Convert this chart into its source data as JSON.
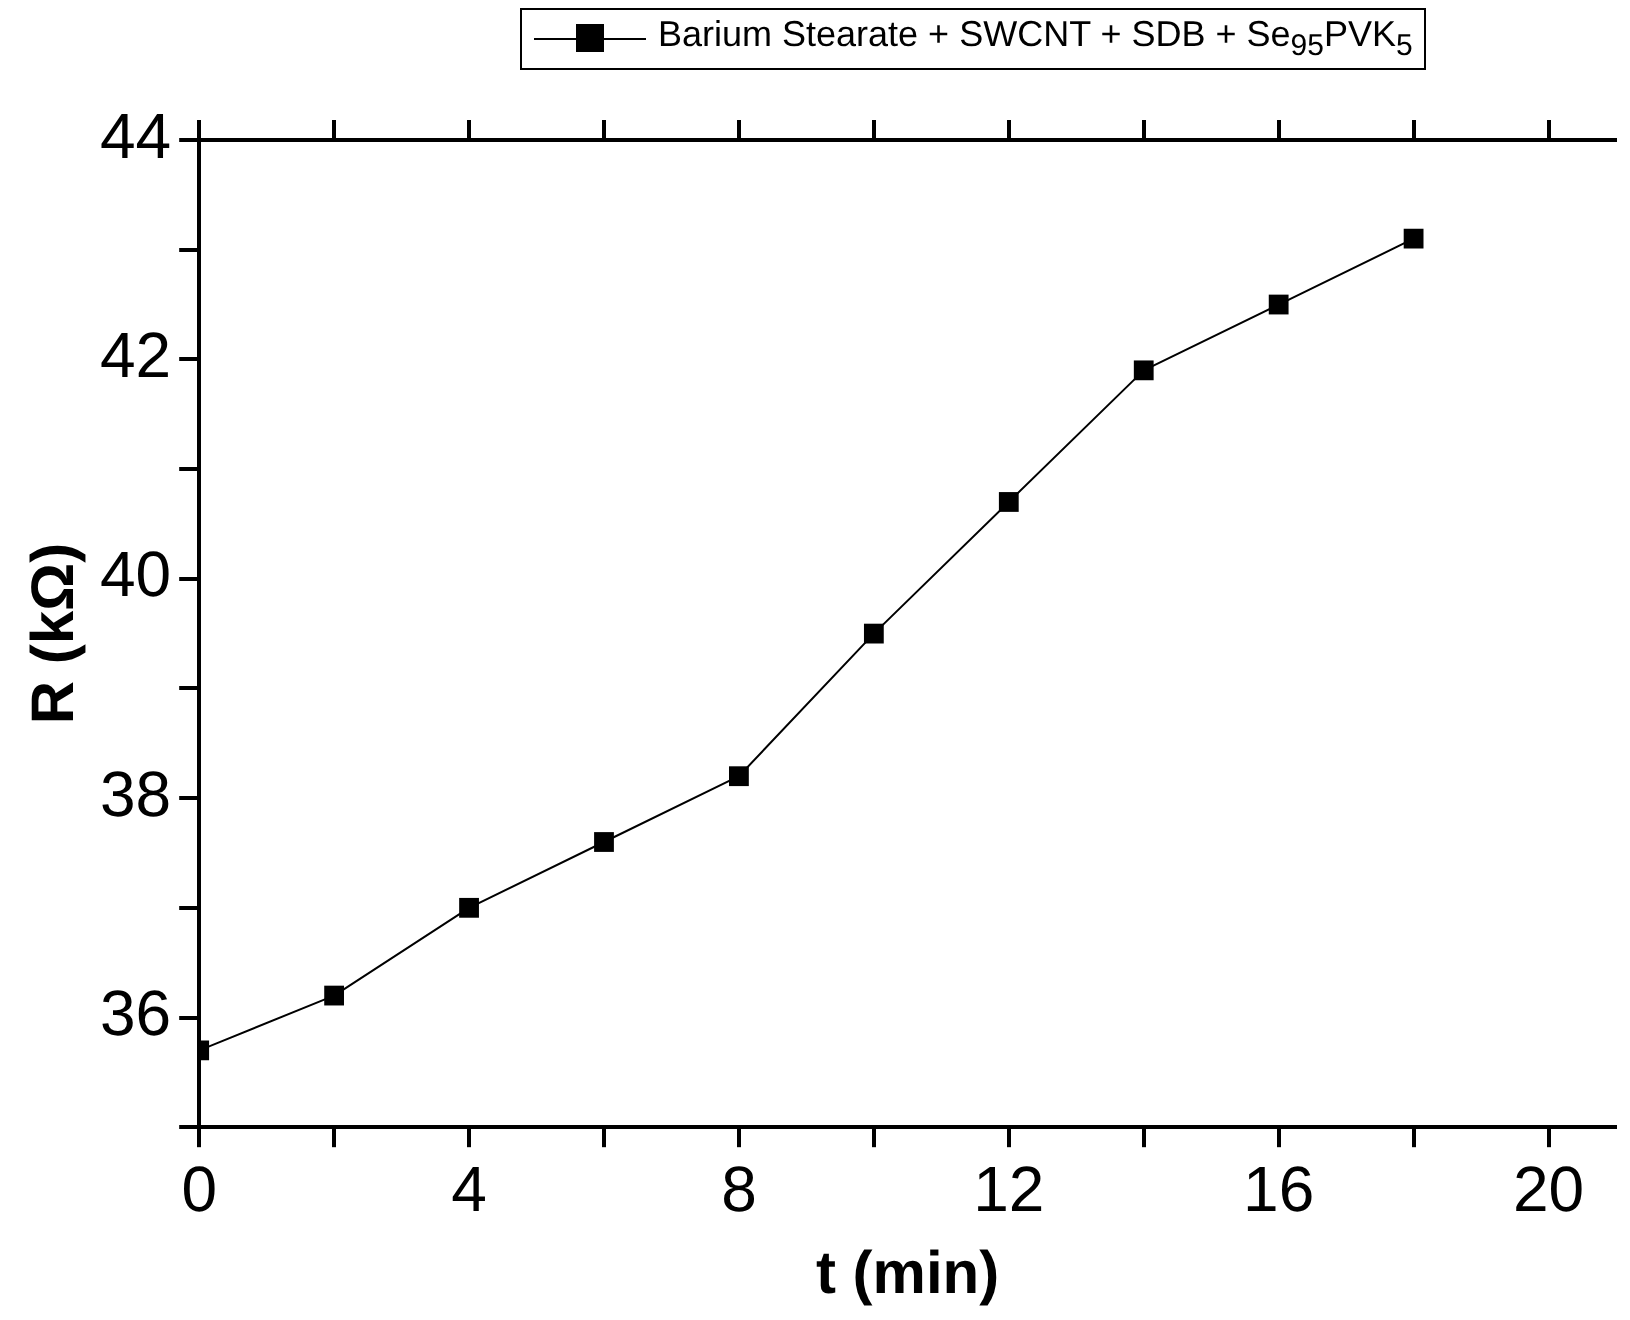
{
  "chart_data": {
    "type": "line",
    "xlabel": "t (min)",
    "ylabel": "R (kΩ)",
    "x": [
      0,
      2,
      4,
      6,
      8,
      10,
      12,
      14,
      16,
      18
    ],
    "series": [
      {
        "name": "Barium Stearate + SWCNT + SDB + Se$_{95}$PVK$_{5}$",
        "color": "#000000",
        "values": [
          35.7,
          36.2,
          37.0,
          37.6,
          38.2,
          39.5,
          40.7,
          41.9,
          42.5,
          43.1
        ]
      }
    ],
    "xlim": [
      0,
      21
    ],
    "xticks": [
      0,
      {
        "value": 2,
        "label": null
      },
      4,
      {
        "value": 6,
        "label": null
      },
      8,
      {
        "value": 10,
        "label": null
      },
      12,
      {
        "value": 14,
        "label": null
      },
      16,
      {
        "value": 18,
        "label": null
      },
      20
    ],
    "ylim": [
      35,
      44
    ],
    "yticks": [
      {
        "value": 35,
        "label": null
      },
      36,
      {
        "value": 37,
        "label": null
      },
      38,
      {
        "value": 39,
        "label": null
      },
      40,
      {
        "value": 41,
        "label": null
      },
      42,
      {
        "value": 43,
        "label": null
      },
      44
    ],
    "grid": false,
    "legend": "top",
    "marker": "square",
    "line_style": "solid"
  }
}
